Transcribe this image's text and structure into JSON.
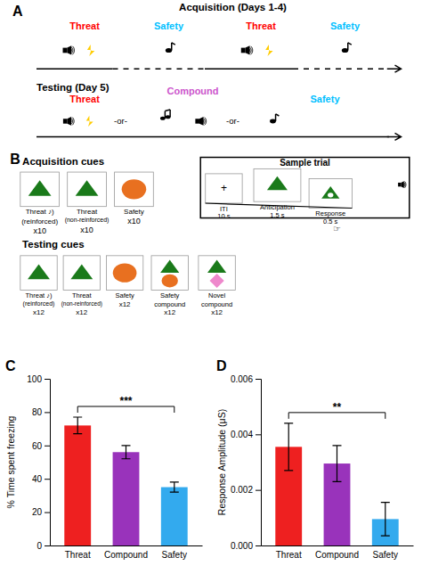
{
  "chart_data": [
    {
      "type": "diagram",
      "title": "Acquisition (Days 1-4)",
      "color": "#ffcc00",
      "annotations": [
        {
          "text": "A"
        },
        {
          "text": "Threat",
          "color": "#ff0000"
        },
        {
          "text": "Safety",
          "color": "#00bfff"
        },
        {
          "text": "Threat",
          "color": "#ff0000"
        },
        {
          "text": "Safety",
          "color": "#00bfff"
        },
        {
          "text": "Testing (Day 5)"
        },
        {
          "text": "Compound",
          "color": "#cc55cc"
        },
        {
          "text": "Threat",
          "color": "#ff0000"
        },
        {
          "text": "Safety",
          "color": "#00bfff"
        },
        {
          "text": "-or-"
        },
        {
          "text": "-or-"
        }
      ]
    },
    {
      "type": "diagram",
      "colors": [
        "#1a7a1a",
        "#e87020",
        "#ee88cc"
      ],
      "annotations": [
        "B",
        "Acquisition cues",
        "Threat  ♪)",
        "(reinforced)",
        "x10",
        "Threat",
        "(non-reinforced)",
        "x10",
        "Safety",
        "x10",
        "Sample trial",
        "+",
        "ITI",
        "10 s",
        "Anticipation",
        "1.5 s",
        "Response",
        "0.5 s",
        "☞",
        "Testing cues",
        "Threat  ♪)",
        "(reinforced)",
        "x12",
        "Threat",
        "(non-reinforced)",
        "x12",
        "Safety",
        "x12",
        "Safety",
        "compound",
        "x12",
        "Novel",
        "compound",
        "x12"
      ]
    },
    {
      "type": "bar",
      "categories": [
        "Threat",
        "Compound",
        "Safety"
      ],
      "values": [
        72,
        56,
        35
      ],
      "errors": [
        5,
        4,
        3
      ],
      "colors": [
        "#ee2020",
        "#9933bb",
        "#33aaee"
      ],
      "ylabel": "% Time spent freezing",
      "ylim": [
        0,
        100
      ],
      "yticks": [
        0,
        20,
        40,
        60,
        80,
        100
      ],
      "annotations": [
        "C",
        "***"
      ]
    },
    {
      "type": "bar",
      "categories": [
        "Threat",
        "Compound",
        "Safety"
      ],
      "values": [
        0.00355,
        0.00295,
        0.00095
      ],
      "errors": [
        0.00085,
        0.00065,
        0.0006
      ],
      "colors": [
        "#ee2020",
        "#9933bb",
        "#33aaee"
      ],
      "ylabel": "Response Amplitude (μS)",
      "ylim": [
        0,
        0.006
      ],
      "yticks": [
        {
          "value": 0,
          "label": "0.000"
        },
        0.002,
        0.004,
        0.006
      ],
      "annotations": [
        "D",
        "**"
      ]
    }
  ]
}
